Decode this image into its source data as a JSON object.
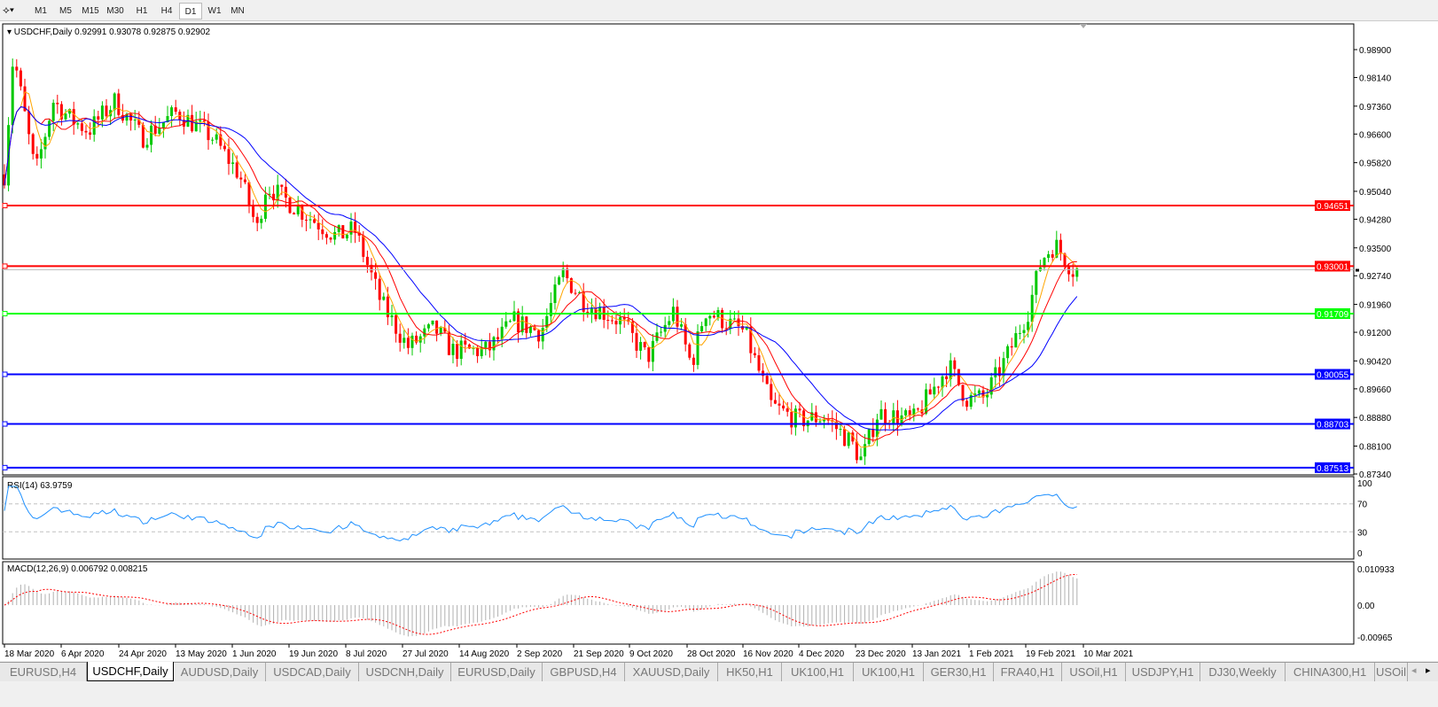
{
  "toolbar": {
    "timeframes": [
      "M1",
      "M5",
      "M15",
      "M30",
      "H1",
      "H4",
      "D1",
      "W1",
      "MN"
    ],
    "active": "D1"
  },
  "chart": {
    "symbol_info": "USDCHF,Daily  0.92991 0.93078 0.92875 0.92902",
    "price_ticks": [
      "0.98900",
      "0.98140",
      "0.97360",
      "0.96600",
      "0.95820",
      "0.95040",
      "0.94280",
      "0.93500",
      "0.92740",
      "0.91960",
      "0.91200",
      "0.90420",
      "0.89660",
      "0.88880",
      "0.88100",
      "0.87340"
    ],
    "current_price": "0.92902",
    "levels": [
      {
        "price": "0.94651",
        "color": "#ff0000"
      },
      {
        "price": "0.93001",
        "color": "#ff0000"
      },
      {
        "price": "0.91709",
        "color": "#00ff00"
      },
      {
        "price": "0.90055",
        "color": "#0000ff"
      },
      {
        "price": "0.88703",
        "color": "#0000ff"
      },
      {
        "price": "0.87513",
        "color": "#0000ff"
      }
    ],
    "colors": {
      "bull": "#00c800",
      "bear": "#ff0000",
      "ma_fast": "#ffa500",
      "ma_mid": "#ff0000",
      "ma_slow": "#0000ff"
    },
    "dates": [
      "18 Mar 2020",
      "6 Apr 2020",
      "24 Apr 2020",
      "13 May 2020",
      "1 Jun 2020",
      "19 Jun 2020",
      "8 Jul 2020",
      "27 Jul 2020",
      "14 Aug 2020",
      "2 Sep 2020",
      "21 Sep 2020",
      "9 Oct 2020",
      "28 Oct 2020",
      "16 Nov 2020",
      "4 Dec 2020",
      "23 Dec 2020",
      "13 Jan 2021",
      "1 Feb 2021",
      "19 Feb 2021",
      "10 Mar 2021"
    ]
  },
  "rsi": {
    "label": "RSI(14) 63.9759",
    "ticks": [
      "100",
      "70",
      "30",
      "0"
    ],
    "color": "#1e90ff"
  },
  "macd": {
    "label": "MACD(12,26,9) 0.006792 0.008215",
    "ticks": [
      "0.010933",
      "0.00",
      "-0.00965"
    ]
  },
  "tabs": [
    "EURUSD,H4",
    "USDCHF,Daily",
    "AUDUSD,Daily",
    "USDCAD,Daily",
    "USDCNH,Daily",
    "EURUSD,Daily",
    "GBPUSD,H4",
    "XAUUSD,Daily",
    "HK50,H1",
    "UK100,H1",
    "UK100,H1",
    "GER30,H1",
    "FRA40,H1",
    "USOil,H1",
    "USDJPY,H1",
    "DJ30,Weekly",
    "CHINA300,H1",
    "USOil"
  ],
  "active_tab": "USDCHF,Daily"
}
